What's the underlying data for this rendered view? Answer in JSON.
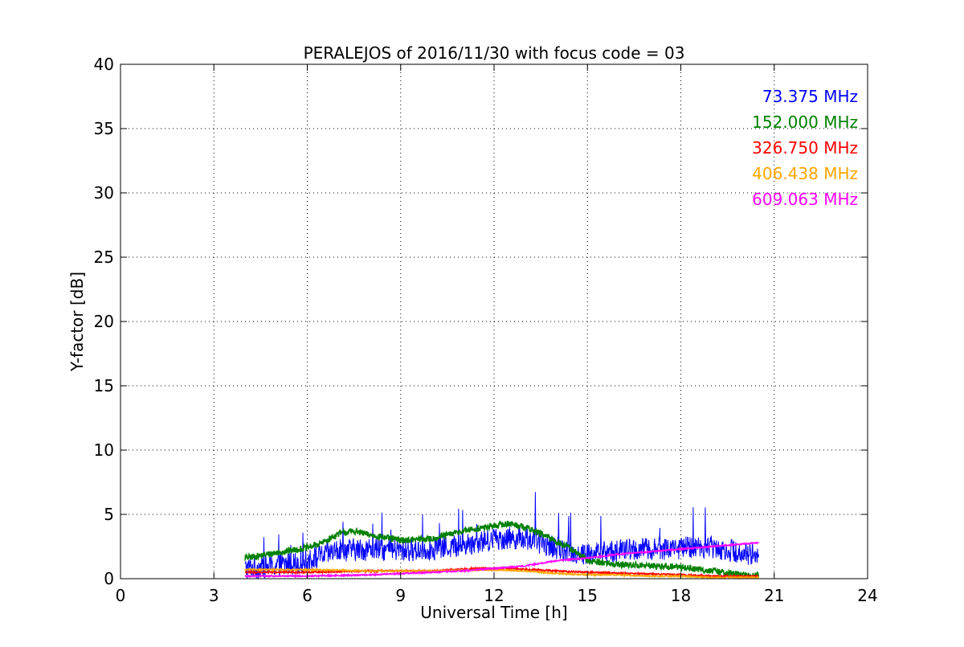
{
  "chart_data": {
    "type": "line",
    "title": "PERALEJOS of 2016/11/30 with focus code = 03",
    "xlabel": "Universal Time [h]",
    "ylabel": "Y-factor [dB]",
    "xlim": [
      0,
      24
    ],
    "ylim": [
      0,
      40
    ],
    "xticks": [
      0,
      3,
      6,
      9,
      12,
      15,
      18,
      21,
      24
    ],
    "yticks": [
      0,
      5,
      10,
      15,
      20,
      25,
      30,
      35,
      40
    ],
    "grid": true,
    "legend_position": "top-right",
    "series": [
      {
        "name": "73.375 MHz",
        "color": "#0000ff",
        "noise": 0.9,
        "spike_prob": 0.02,
        "spike_height": 3.5,
        "x": [
          4.0,
          5.0,
          6.0,
          6.5,
          7.0,
          8.0,
          9.0,
          10.0,
          11.0,
          12.0,
          13.0,
          14.0,
          14.5,
          15.0,
          16.0,
          17.0,
          18.0,
          19.0,
          20.0,
          20.5
        ],
        "y": [
          0.8,
          1.0,
          1.4,
          1.8,
          2.2,
          2.3,
          2.2,
          2.3,
          2.6,
          3.1,
          3.2,
          2.4,
          2.0,
          1.9,
          2.2,
          2.3,
          2.4,
          2.5,
          2.0,
          1.9
        ]
      },
      {
        "name": "152.000 MHz",
        "color": "#008000",
        "noise": 0.25,
        "spike_prob": 0,
        "spike_height": 0,
        "x": [
          4.0,
          5.0,
          6.0,
          6.5,
          7.0,
          7.5,
          8.0,
          9.0,
          10.0,
          11.0,
          11.5,
          12.0,
          12.5,
          13.0,
          13.5,
          14.0,
          14.5,
          15.0,
          16.0,
          17.0,
          18.0,
          19.0,
          20.0,
          20.5
        ],
        "y": [
          1.6,
          2.0,
          2.4,
          2.8,
          3.5,
          3.7,
          3.4,
          3.0,
          3.1,
          3.7,
          3.9,
          4.1,
          4.3,
          4.0,
          3.5,
          2.9,
          2.3,
          1.4,
          1.1,
          1.0,
          0.9,
          0.6,
          0.3,
          0.2
        ]
      },
      {
        "name": "326.750 MHz",
        "color": "#ff0000",
        "noise": 0.06,
        "spike_prob": 0,
        "spike_height": 0,
        "x": [
          4.0,
          6.0,
          8.0,
          10.0,
          11.5,
          12.5,
          14.0,
          15.0,
          16.5,
          18.0,
          19.0,
          20.0,
          20.5
        ],
        "y": [
          0.5,
          0.5,
          0.6,
          0.6,
          0.8,
          0.8,
          0.6,
          0.5,
          0.4,
          0.3,
          0.2,
          0.2,
          0.2
        ]
      },
      {
        "name": "406.438 MHz",
        "color": "#ffa500",
        "noise": 0.05,
        "spike_prob": 0,
        "spike_height": 0,
        "x": [
          4.0,
          6.0,
          8.0,
          10.0,
          12.0,
          13.0,
          14.0,
          15.0,
          16.0,
          17.0,
          18.0,
          19.0,
          20.0,
          20.5
        ],
        "y": [
          0.7,
          0.7,
          0.6,
          0.6,
          0.7,
          0.6,
          0.4,
          0.3,
          0.3,
          0.2,
          0.2,
          0.1,
          0.1,
          0.1
        ]
      },
      {
        "name": "609.063 MHz",
        "color": "#ff00ff",
        "noise": 0.05,
        "spike_prob": 0,
        "spike_height": 0,
        "x": [
          4.0,
          6.0,
          8.0,
          10.0,
          11.0,
          12.0,
          13.0,
          14.0,
          15.0,
          16.0,
          17.0,
          18.0,
          19.0,
          20.0,
          20.5
        ],
        "y": [
          0.2,
          0.2,
          0.3,
          0.5,
          0.6,
          0.8,
          1.0,
          1.4,
          1.6,
          1.9,
          2.1,
          2.3,
          2.5,
          2.7,
          2.8
        ]
      }
    ]
  }
}
